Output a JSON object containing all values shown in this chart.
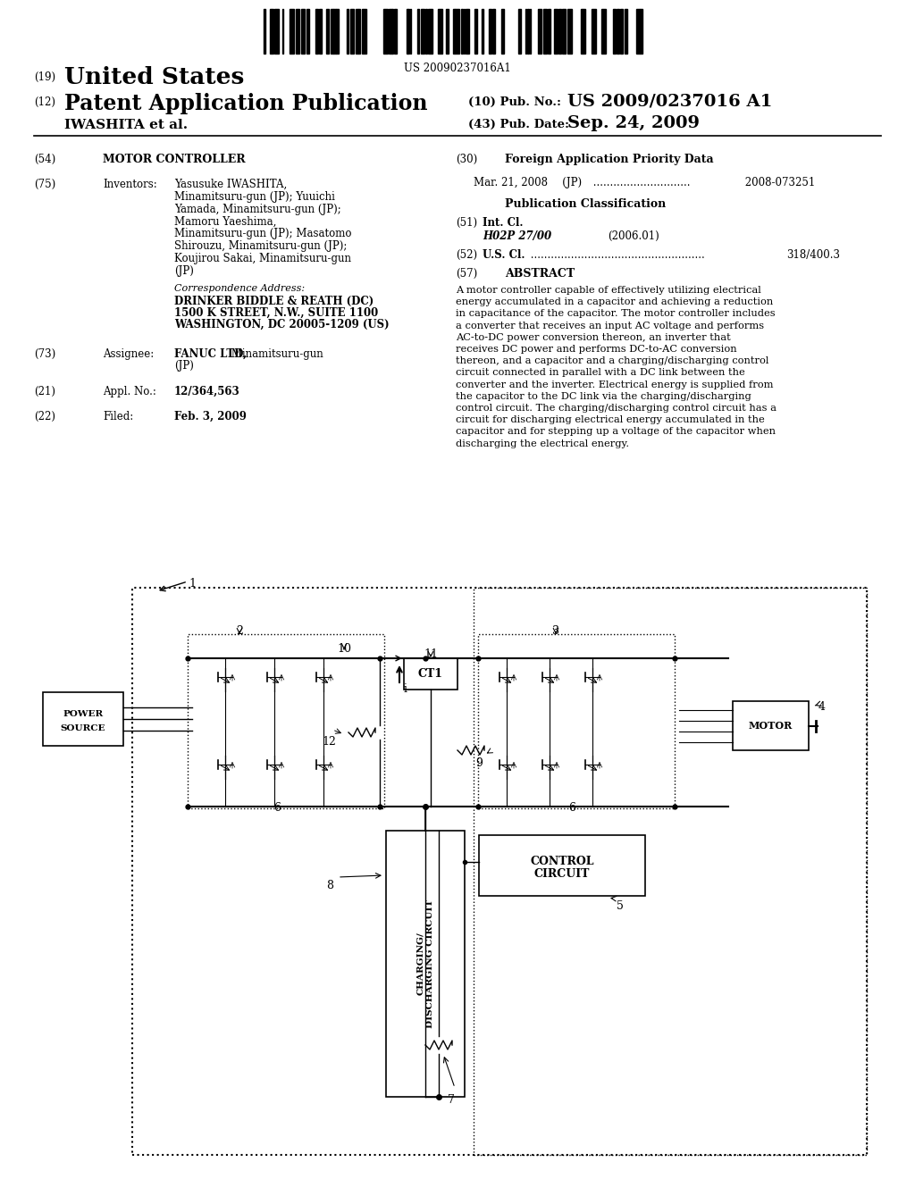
{
  "background_color": "#ffffff",
  "page_width": 10.24,
  "page_height": 13.2,
  "barcode_text": "US 20090237016A1",
  "title_19": "(19)",
  "title_us": "United States",
  "title_12": "(12)",
  "title_pat": "Patent Application Publication",
  "title_10": "(10) Pub. No.:",
  "pub_no": "US 2009/0237016 A1",
  "title_iwashita": "IWASHITA et al.",
  "title_43": "(43) Pub. Date:",
  "pub_date": "Sep. 24, 2009",
  "field_54_label": "(54)",
  "field_54_value": "MOTOR CONTROLLER",
  "field_75_label": "(75)",
  "field_75_key": "Inventors:",
  "inv_line1": "Yasusuke IWASHITA,",
  "inv_line2": "Minamitsuru-gun (JP); Yuuichi",
  "inv_line3": "Yamada, Minamitsuru-gun (JP);",
  "inv_line4": "Mamoru Yaeshima,",
  "inv_line5": "Minamitsuru-gun (JP); Masatomo",
  "inv_line6": "Shirouzu, Minamitsuru-gun (JP);",
  "inv_line7": "Koujirou Sakai, Minamitsuru-gun",
  "inv_line8": "(JP)",
  "corr_label": "Correspondence Address:",
  "corr_line1": "DRINKER BIDDLE & REATH (DC)",
  "corr_line2": "1500 K STREET, N.W., SUITE 1100",
  "corr_line3": "WASHINGTON, DC 20005-1209 (US)",
  "field_73_label": "(73)",
  "field_73_key": "Assignee:",
  "field_73_bold": "FANUC LTD,",
  "field_73_rest": " Minamitsuru-gun",
  "field_73_jp": "(JP)",
  "field_21_label": "(21)",
  "field_21_key": "Appl. No.:",
  "field_21_value": "12/364,563",
  "field_22_label": "(22)",
  "field_22_key": "Filed:",
  "field_22_value": "Feb. 3, 2009",
  "field_30_label": "(30)",
  "field_30_value": "Foreign Application Priority Data",
  "priority_date": "Mar. 21, 2008",
  "priority_country": "   (JP)",
  "priority_dots": " .............................",
  "priority_number": " 2008-073251",
  "pub_class_label": "Publication Classification",
  "field_51_label": "(51)",
  "field_51_key": "Int. Cl.",
  "field_51_class": "H02P 27/00",
  "field_51_year": "(2006.01)",
  "field_52_label": "(52)",
  "field_52_key": "U.S. Cl.",
  "field_52_dots": " ....................................................",
  "field_52_value": "318/400.3",
  "field_57_label": "(57)",
  "field_57_key": "ABSTRACT",
  "abstract_lines": [
    "A motor controller capable of effectively utilizing electrical",
    "energy accumulated in a capacitor and achieving a reduction",
    "in capacitance of the capacitor. The motor controller includes",
    "a converter that receives an input AC voltage and performs",
    "AC-to-DC power conversion thereon, an inverter that",
    "receives DC power and performs DC-to-AC conversion",
    "thereon, and a capacitor and a charging/discharging control",
    "circuit connected in parallel with a DC link between the",
    "converter and the inverter. Electrical energy is supplied from",
    "the capacitor to the DC link via the charging/discharging",
    "control circuit. The charging/discharging control circuit has a",
    "circuit for discharging electrical energy accumulated in the",
    "capacitor and for stepping up a voltage of the capacitor when",
    "discharging the electrical energy."
  ]
}
